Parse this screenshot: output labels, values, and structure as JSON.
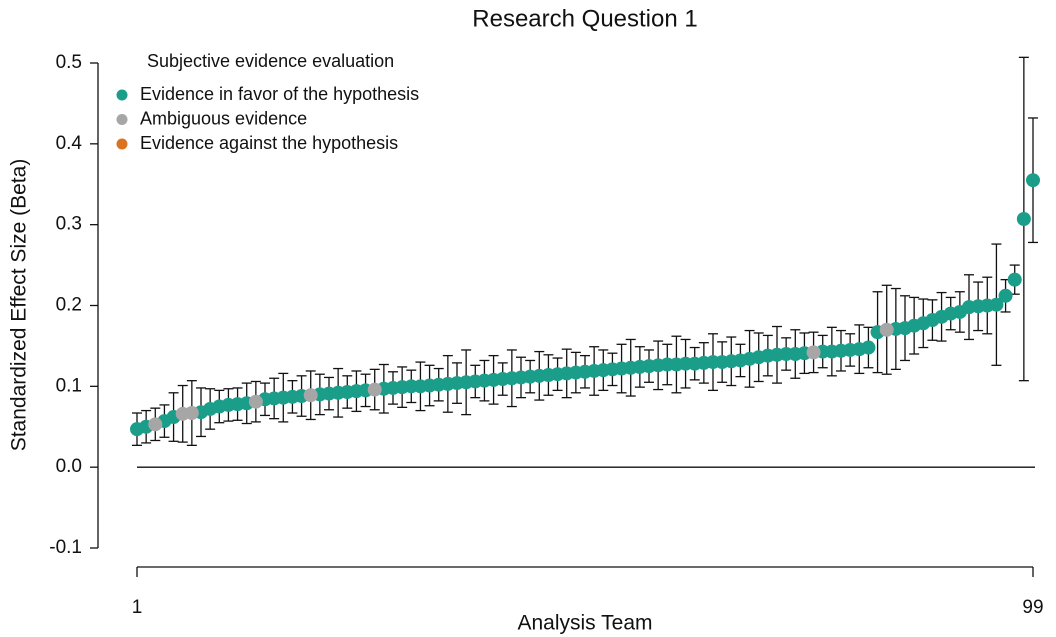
{
  "chart_data": {
    "type": "scatter",
    "title": "Research Question 1",
    "xlabel": "Analysis Team",
    "ylabel": "Standardized Effect Size (Beta)",
    "legend_title": "Subjective evidence evaluation",
    "legend": "upper left",
    "xlim": [
      1,
      99
    ],
    "xticks": [
      1,
      99
    ],
    "ylim": [
      -0.1,
      0.5
    ],
    "yticks": [
      -0.1,
      {
        "value": 0,
        "label": "0.0"
      },
      0.1,
      0.2,
      0.3,
      0.4,
      0.5
    ],
    "reference_line": 0,
    "series": [
      {
        "name": "Evidence in favor of the hypothesis",
        "color": "#1a9e8a",
        "x": [
          1,
          2,
          4,
          5,
          8,
          9,
          10,
          11,
          12,
          13,
          15,
          16,
          17,
          18,
          19,
          21,
          22,
          23,
          24,
          25,
          26,
          28,
          29,
          30,
          31,
          32,
          33,
          34,
          35,
          36,
          37,
          38,
          39,
          40,
          41,
          42,
          43,
          44,
          45,
          46,
          47,
          48,
          49,
          50,
          51,
          52,
          53,
          54,
          55,
          56,
          57,
          58,
          59,
          60,
          61,
          62,
          63,
          64,
          65,
          66,
          67,
          68,
          69,
          70,
          71,
          72,
          73,
          74,
          76,
          77,
          78,
          79,
          80,
          81,
          82,
          84,
          85,
          86,
          87,
          88,
          89,
          90,
          91,
          92,
          93,
          94,
          95,
          96,
          97,
          98,
          99
        ],
        "values": [
          0.047,
          0.05,
          0.057,
          0.062,
          0.068,
          0.072,
          0.075,
          0.077,
          0.078,
          0.079,
          0.084,
          0.085,
          0.086,
          0.087,
          0.088,
          0.09,
          0.091,
          0.092,
          0.093,
          0.094,
          0.095,
          0.097,
          0.098,
          0.099,
          0.1,
          0.1,
          0.101,
          0.102,
          0.103,
          0.104,
          0.105,
          0.106,
          0.107,
          0.108,
          0.109,
          0.11,
          0.111,
          0.112,
          0.113,
          0.114,
          0.115,
          0.116,
          0.117,
          0.118,
          0.119,
          0.12,
          0.121,
          0.122,
          0.123,
          0.124,
          0.125,
          0.126,
          0.127,
          0.127,
          0.128,
          0.128,
          0.129,
          0.13,
          0.13,
          0.131,
          0.132,
          0.134,
          0.136,
          0.138,
          0.139,
          0.14,
          0.14,
          0.141,
          0.143,
          0.143,
          0.144,
          0.145,
          0.146,
          0.148,
          0.167,
          0.171,
          0.172,
          0.175,
          0.178,
          0.182,
          0.186,
          0.19,
          0.192,
          0.198,
          0.199,
          0.2,
          0.201,
          0.212,
          0.232,
          0.307,
          0.355
        ],
        "errors": [
          0.02,
          0.02,
          0.02,
          0.03,
          0.03,
          0.025,
          0.02,
          0.02,
          0.02,
          0.025,
          0.02,
          0.025,
          0.03,
          0.02,
          0.025,
          0.025,
          0.02,
          0.03,
          0.02,
          0.025,
          0.02,
          0.03,
          0.02,
          0.025,
          0.02,
          0.03,
          0.025,
          0.02,
          0.035,
          0.025,
          0.04,
          0.02,
          0.025,
          0.03,
          0.02,
          0.035,
          0.025,
          0.02,
          0.03,
          0.025,
          0.02,
          0.03,
          0.025,
          0.02,
          0.03,
          0.025,
          0.02,
          0.03,
          0.035,
          0.025,
          0.02,
          0.03,
          0.025,
          0.035,
          0.03,
          0.02,
          0.025,
          0.035,
          0.025,
          0.03,
          0.02,
          0.035,
          0.03,
          0.025,
          0.035,
          0.02,
          0.03,
          0.025,
          0.02,
          0.03,
          0.025,
          0.02,
          0.03,
          0.025,
          0.05,
          0.05,
          0.04,
          0.035,
          0.03,
          0.025,
          0.03,
          0.02,
          0.025,
          0.04,
          0.03,
          0.035,
          0.075,
          0.02,
          0.018,
          0.2,
          0.077
        ]
      },
      {
        "name": "Ambiguous evidence",
        "color": "#a6a6a6",
        "x": [
          3,
          6,
          7,
          14,
          20,
          27,
          75,
          83
        ],
        "values": [
          0.053,
          0.066,
          0.067,
          0.081,
          0.089,
          0.096,
          0.142,
          0.17
        ],
        "errors": [
          0.02,
          0.035,
          0.04,
          0.025,
          0.03,
          0.025,
          0.025,
          0.055
        ]
      },
      {
        "name": "Evidence against the hypothesis",
        "color": "#d9731f",
        "x": [],
        "values": [],
        "errors": []
      }
    ]
  }
}
